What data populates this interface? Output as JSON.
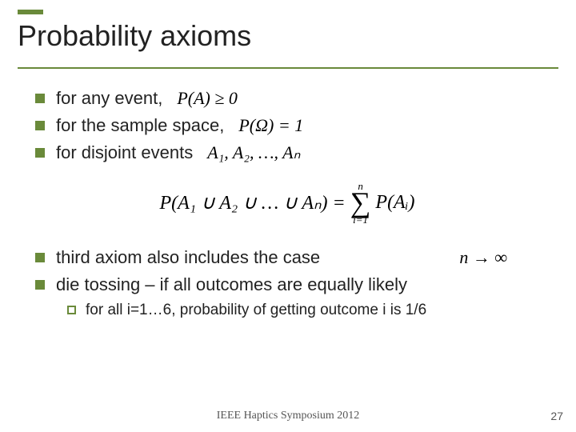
{
  "colors": {
    "accent": "#6a8a3a",
    "text": "#222222",
    "background": "#ffffff"
  },
  "title": "Probability axioms",
  "bullets_top": [
    {
      "text": "for any event,",
      "math": "P(A) ≥ 0"
    },
    {
      "text": "for the sample space,",
      "math": "P(Ω) = 1"
    },
    {
      "text": "for disjoint events",
      "math": "A₁, A₂, …, Aₙ"
    }
  ],
  "formula": {
    "left": "P(A₁ ∪ A₂ ∪ … ∪ Aₙ) = ",
    "sum_top": "n",
    "sum_bottom": "i=1",
    "right": " P(Aᵢ)"
  },
  "bullets_bottom": [
    {
      "text": "third axiom also includes the case",
      "math": "n → ∞"
    },
    {
      "text": "die tossing – if all outcomes are equally likely",
      "math": ""
    }
  ],
  "sub_bullet": "for all i=1…6, probability of getting outcome i is 1/6",
  "footer": "IEEE Haptics Symposium 2012",
  "page_number": "27"
}
